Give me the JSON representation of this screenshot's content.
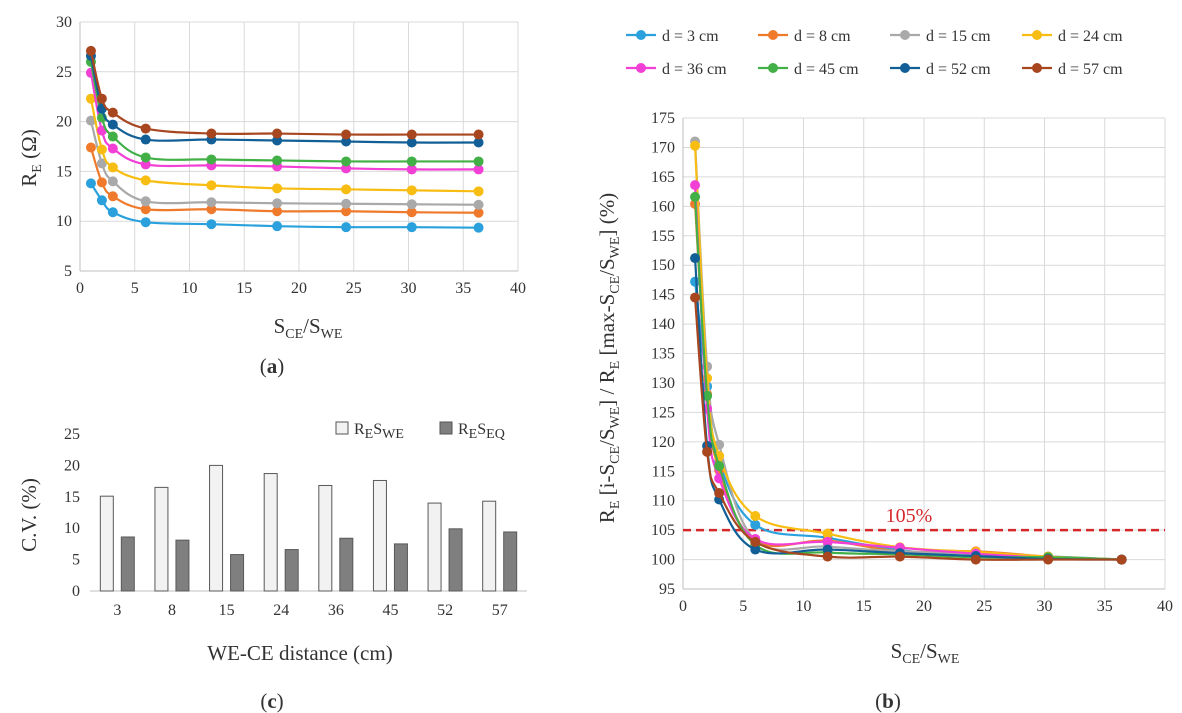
{
  "figure": {
    "panel_a": "(a)",
    "panel_b": "(b)",
    "panel_c": "(c)",
    "panel_a_letter": "a",
    "panel_b_letter": "b",
    "panel_c_letter": "c"
  },
  "colors": {
    "d3": "#2aa1dc",
    "d8": "#f07a2c",
    "d15": "#a9a9a9",
    "d24": "#f7bd12",
    "d36": "#f23fd6",
    "d45": "#43b047",
    "d52": "#115f96",
    "d57": "#a8461f",
    "bar_light": "#f2f2f2",
    "bar_dark": "#7f7f7f",
    "threshold": "#d6282b"
  },
  "chart_data": [
    {
      "id": "a",
      "type": "line",
      "xlabel": "SCE/SWE",
      "xlabel_parts": {
        "base1": "S",
        "sub1": "CE",
        "sep": "/S",
        "sub2": "WE"
      },
      "ylabel": "RE (Ω)",
      "ylabel_parts": {
        "base": "R",
        "sub": "E",
        "rest": " (Ω)"
      },
      "xlim": [
        0,
        40
      ],
      "ylim": [
        5,
        30
      ],
      "xticks": [
        "0",
        "5",
        "10",
        "15",
        "20",
        "25",
        "30",
        "35",
        "40"
      ],
      "yticks": [
        "5",
        "10",
        "15",
        "20",
        "25",
        "30"
      ],
      "grid": true,
      "x": [
        1,
        2,
        3,
        6,
        12,
        18,
        24.3,
        30.3,
        36.4
      ],
      "series": [
        {
          "name": "d = 3 cm",
          "values": [
            13.8,
            12.1,
            10.9,
            9.9,
            9.7,
            9.5,
            9.4,
            9.4,
            9.35
          ]
        },
        {
          "name": "d = 8 cm",
          "values": [
            17.4,
            13.9,
            12.5,
            11.2,
            11.2,
            11.0,
            11.0,
            10.9,
            10.85
          ]
        },
        {
          "name": "d = 15 cm",
          "values": [
            20.1,
            15.8,
            14.0,
            12.0,
            11.9,
            11.8,
            11.75,
            11.7,
            11.65
          ]
        },
        {
          "name": "d = 24 cm",
          "values": [
            22.3,
            17.2,
            15.4,
            14.1,
            13.6,
            13.3,
            13.2,
            13.1,
            13.0
          ]
        },
        {
          "name": "d = 36 cm",
          "values": [
            24.9,
            19.1,
            17.3,
            15.7,
            15.6,
            15.5,
            15.3,
            15.2,
            15.2
          ]
        },
        {
          "name": "d = 45 cm",
          "values": [
            26.0,
            20.4,
            18.5,
            16.4,
            16.2,
            16.1,
            16.0,
            16.0,
            16.0
          ]
        },
        {
          "name": "d = 52 cm",
          "values": [
            26.6,
            21.3,
            19.7,
            18.2,
            18.2,
            18.1,
            18.0,
            17.9,
            17.9
          ]
        },
        {
          "name": "d = 57 cm",
          "values": [
            27.1,
            22.3,
            20.9,
            19.3,
            18.8,
            18.8,
            18.7,
            18.7,
            18.7
          ]
        }
      ]
    },
    {
      "id": "b",
      "type": "line",
      "xlabel": "SCE/SWE",
      "xlabel_parts": {
        "base1": "S",
        "sub1": "CE",
        "sep": "/S",
        "sub2": "WE"
      },
      "ylabel": "RE [i-SCE/SWE] / RE [max-SCE/SWE] (%)",
      "ylabel_parts": [
        {
          "t": "R"
        },
        {
          "t": "E",
          "sub": true
        },
        {
          "t": " [i-S"
        },
        {
          "t": "CE",
          "sub": true
        },
        {
          "t": "/S"
        },
        {
          "t": "WE",
          "sub": true
        },
        {
          "t": "] / R"
        },
        {
          "t": "E",
          "sub": true
        },
        {
          "t": " [max-S"
        },
        {
          "t": "CE",
          "sub": true
        },
        {
          "t": "/S"
        },
        {
          "t": "WE",
          "sub": true
        },
        {
          "t": "]  (%)"
        }
      ],
      "xlim": [
        0,
        40
      ],
      "ylim": [
        95,
        175
      ],
      "xticks": [
        "0",
        "5",
        "10",
        "15",
        "20",
        "25",
        "30",
        "35",
        "40"
      ],
      "yticks": [
        "95",
        "100",
        "105",
        "110",
        "115",
        "120",
        "125",
        "130",
        "135",
        "140",
        "145",
        "150",
        "155",
        "160",
        "165",
        "170",
        "175"
      ],
      "grid": true,
      "threshold": {
        "value": 105,
        "label": "105%"
      },
      "legend_position": "top",
      "x": [
        1,
        2,
        3,
        6,
        12,
        18,
        24.3,
        30.3,
        36.4
      ],
      "series": [
        {
          "name": "d = 3 cm",
          "values": [
            147.2,
            129.4,
            116.6,
            105.9,
            103.7,
            101.6,
            100.5,
            100.5,
            100
          ]
        },
        {
          "name": "d = 8 cm",
          "values": [
            160.4,
            128.1,
            115.2,
            103.2,
            103.2,
            101.4,
            101.4,
            100.5,
            100
          ]
        },
        {
          "name": "d = 15 cm",
          "values": [
            171.0,
            132.8,
            119.5,
            103.3,
            102.2,
            101.4,
            101.0,
            100.4,
            100
          ]
        },
        {
          "name": "d = 24 cm",
          "values": [
            170.3,
            130.8,
            117.6,
            107.4,
            104.4,
            102.1,
            101.3,
            100.5,
            100
          ]
        },
        {
          "name": "d = 36 cm",
          "values": [
            163.6,
            125.6,
            113.8,
            103.5,
            103.0,
            102.0,
            101.0,
            100.3,
            100
          ]
        },
        {
          "name": "d = 45 cm",
          "values": [
            161.6,
            127.8,
            115.9,
            102.5,
            101.2,
            100.9,
            100.4,
            100.4,
            100
          ]
        },
        {
          "name": "d = 52 cm",
          "values": [
            151.2,
            119.3,
            110.2,
            101.7,
            101.7,
            101.1,
            100.6,
            100.1,
            100
          ]
        },
        {
          "name": "d = 57 cm",
          "values": [
            144.5,
            118.3,
            111.3,
            103.0,
            100.5,
            100.5,
            100.0,
            100.0,
            100
          ]
        }
      ]
    },
    {
      "id": "c",
      "type": "bar",
      "xlabel": "WE-CE distance (cm)",
      "ylabel": "C.V. (%)",
      "ylim": [
        0,
        25
      ],
      "yticks": [
        "0",
        "5",
        "10",
        "15",
        "20",
        "25"
      ],
      "grid": false,
      "legend_position": "top-right",
      "categories": [
        "3",
        "8",
        "15",
        "24",
        "36",
        "45",
        "52",
        "57"
      ],
      "series": [
        {
          "name": "RESWE",
          "name_parts": {
            "b1": "R",
            "s1": "E",
            "b2": "S",
            "s2": "WE"
          },
          "values": [
            15.1,
            16.5,
            20.0,
            18.7,
            16.8,
            17.6,
            14.0,
            14.3
          ]
        },
        {
          "name": "RESEQ",
          "name_parts": {
            "b1": "R",
            "s1": "E",
            "b2": "S",
            "s2": "EQ"
          },
          "values": [
            8.6,
            8.1,
            5.8,
            6.6,
            8.4,
            7.5,
            9.9,
            9.4
          ]
        }
      ]
    }
  ]
}
